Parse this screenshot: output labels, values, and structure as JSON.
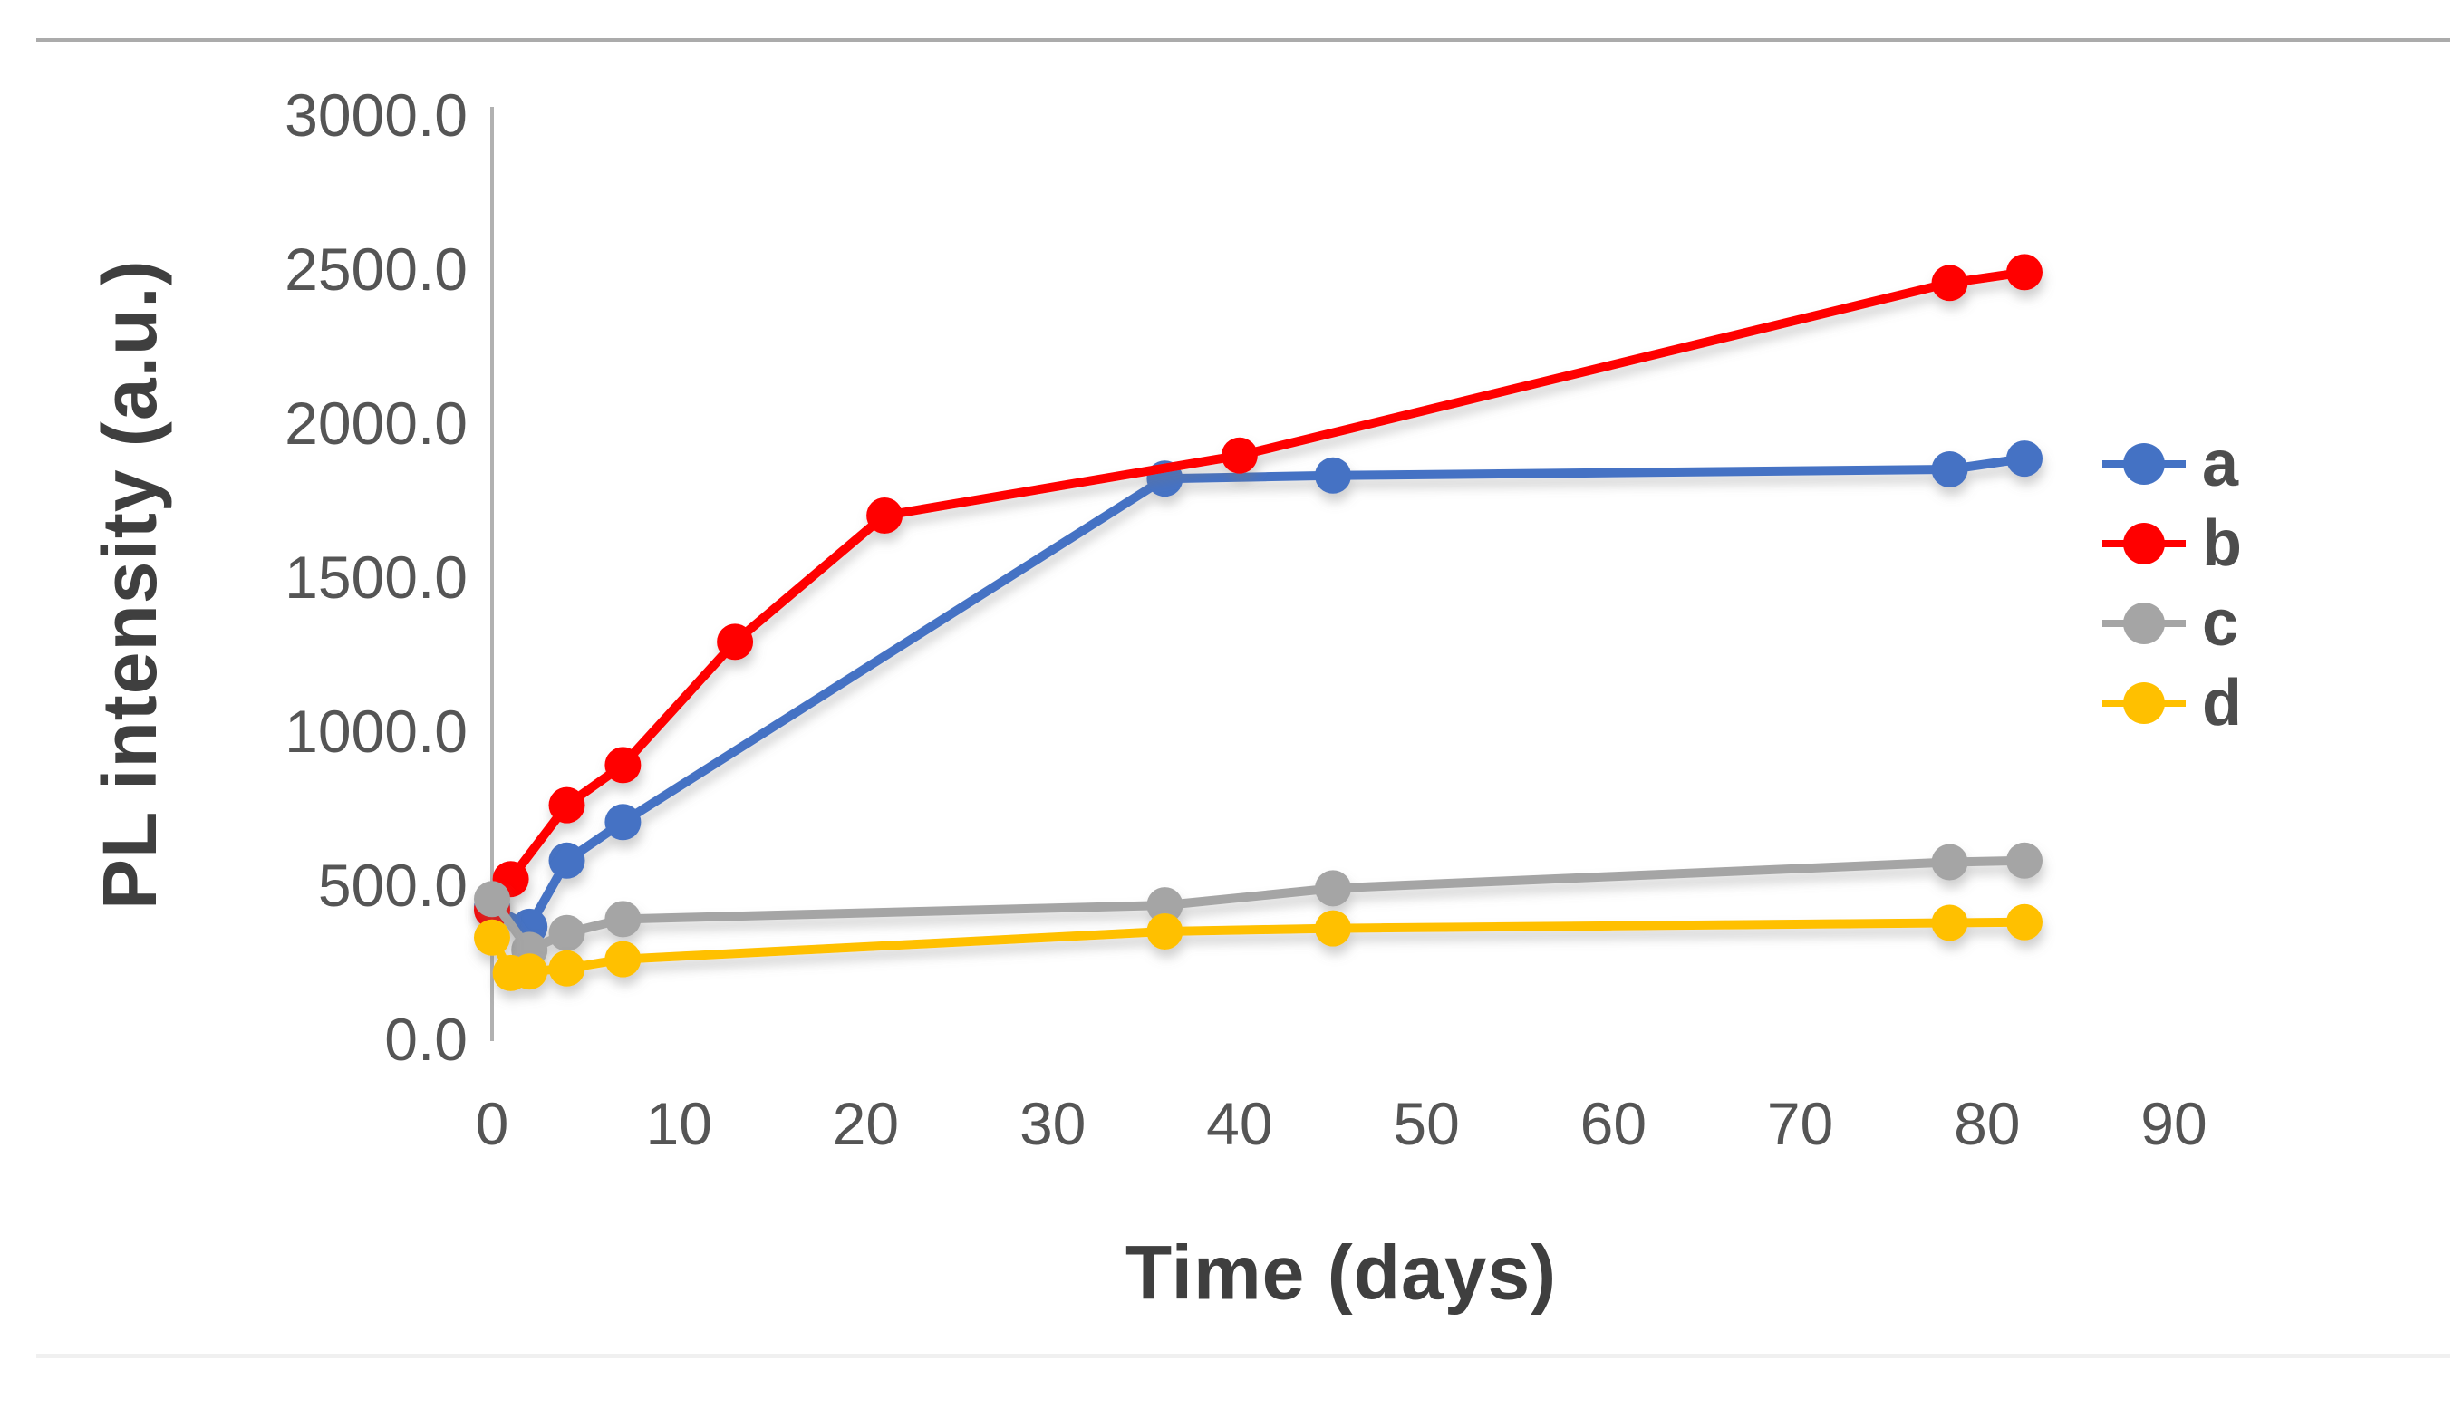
{
  "page": {
    "background": "#ffffff",
    "top_divider_color": "#ababab",
    "bottom_divider_color": "#f0f0f0"
  },
  "chart_data": {
    "type": "line",
    "title": "",
    "xlabel": "Time (days)",
    "ylabel": "PL intensity (a.u.)",
    "xlim": [
      0,
      97
    ],
    "ylim": [
      0,
      3000
    ],
    "x_ticks": [
      0,
      10,
      20,
      30,
      40,
      50,
      60,
      70,
      80,
      90
    ],
    "y_ticks": [
      3000,
      2500,
      2000,
      1500,
      1000,
      500,
      0
    ],
    "y_tick_labels": [
      "3000.0",
      "2500.0",
      "2000.0",
      "1500.0",
      "1000.0",
      "500.0",
      "0.0"
    ],
    "grid": false,
    "legend_position": "right-middle",
    "axis_color": "#b1b1b1",
    "tick_label_color": "#555555",
    "title_color": "#3f3f3f",
    "marker": "circle",
    "series": [
      {
        "name": "a",
        "color": "#4472C4",
        "x": [
          0,
          2,
          4,
          7,
          36,
          45,
          78,
          82
        ],
        "y": [
          430,
          365,
          580,
          705,
          1820,
          1830,
          1850,
          1885
        ]
      },
      {
        "name": "b",
        "color": "#FF0000",
        "x": [
          0,
          1,
          4,
          7,
          13,
          21,
          40,
          78,
          82
        ],
        "y": [
          420,
          520,
          760,
          890,
          1290,
          1700,
          1895,
          2455,
          2490
        ]
      },
      {
        "name": "c",
        "color": "#A5A5A5",
        "x": [
          0,
          2,
          4,
          7,
          36,
          45,
          78,
          82
        ],
        "y": [
          455,
          290,
          345,
          390,
          435,
          490,
          575,
          580
        ]
      },
      {
        "name": "d",
        "color": "#FFC000",
        "x": [
          0,
          1,
          2,
          4,
          7,
          36,
          45,
          78,
          82
        ],
        "y": [
          330,
          215,
          220,
          230,
          260,
          350,
          360,
          378,
          380
        ]
      }
    ]
  },
  "legend": {
    "items": [
      {
        "label": "a",
        "color": "#4472C4"
      },
      {
        "label": "b",
        "color": "#FF0000"
      },
      {
        "label": "c",
        "color": "#A5A5A5"
      },
      {
        "label": "d",
        "color": "#FFC000"
      }
    ]
  }
}
